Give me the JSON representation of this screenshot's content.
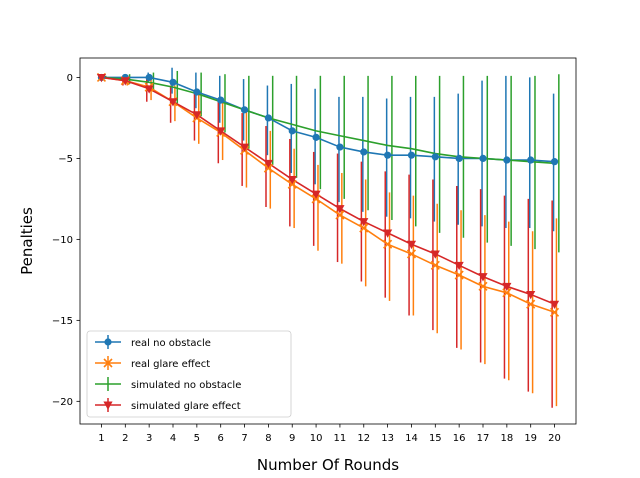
{
  "chart_data": {
    "type": "line",
    "title": "",
    "xlabel": "Number Of Rounds",
    "ylabel": "Penalties",
    "x": [
      1,
      2,
      3,
      4,
      5,
      6,
      7,
      8,
      9,
      10,
      11,
      12,
      13,
      14,
      15,
      16,
      17,
      18,
      19,
      20
    ],
    "xticks": [
      "1",
      "2",
      "3",
      "4",
      "5",
      "6",
      "7",
      "8",
      "9",
      "10",
      "11",
      "12",
      "13",
      "14",
      "15",
      "16",
      "17",
      "18",
      "19",
      "20"
    ],
    "yticks": [
      0,
      -5,
      -10,
      -15,
      -20
    ],
    "ytick_labels": [
      "0",
      "−5",
      "−10",
      "−15",
      "−20"
    ],
    "xlim": [
      0.1,
      20.9
    ],
    "ylim": [
      -21.4,
      1.2
    ],
    "grid": false,
    "legend_position": "lower-left",
    "series": [
      {
        "name": "real no obstacle",
        "color": "#1f77b4",
        "marker": "circle",
        "values": [
          0,
          0,
          0,
          -0.3,
          -0.9,
          -1.4,
          -2.0,
          -2.5,
          -3.3,
          -3.7,
          -4.3,
          -4.6,
          -4.8,
          -4.8,
          -4.9,
          -5.0,
          -5.0,
          -5.1,
          -5.1,
          -5.2
        ],
        "yerr_lower": [
          0.1,
          0.2,
          0.3,
          0.7,
          1.0,
          1.4,
          1.9,
          2.3,
          2.6,
          2.9,
          3.4,
          3.7,
          3.8,
          3.9,
          4.0,
          4.1,
          4.2,
          4.2,
          4.2,
          4.3
        ],
        "yerr_upper": [
          0.1,
          0.2,
          0.3,
          0.9,
          1.2,
          1.5,
          1.9,
          2.0,
          2.9,
          3.0,
          3.1,
          3.4,
          3.5,
          3.6,
          3.7,
          4.0,
          4.8,
          5.2,
          5.1,
          4.2
        ],
        "err_offset": -0.04
      },
      {
        "name": "real glare effect",
        "color": "#ff7f0e",
        "marker": "x",
        "values": [
          0,
          -0.2,
          -0.6,
          -1.5,
          -2.5,
          -3.4,
          -4.5,
          -5.6,
          -6.6,
          -7.5,
          -8.5,
          -9.3,
          -10.3,
          -10.9,
          -11.6,
          -12.2,
          -12.9,
          -13.3,
          -14.0,
          -14.5
        ],
        "yerr_lower": [
          0.1,
          0.3,
          0.8,
          1.2,
          1.6,
          1.7,
          2.3,
          2.5,
          2.7,
          3.2,
          3.0,
          3.6,
          3.5,
          3.8,
          4.2,
          4.6,
          4.8,
          5.4,
          5.5,
          5.8
        ],
        "yerr_upper": [
          0.1,
          0.3,
          0.6,
          1.0,
          1.6,
          2.0,
          2.5,
          2.3,
          2.2,
          2.1,
          2.6,
          3.0,
          3.2,
          3.6,
          3.8,
          4.0,
          4.4,
          4.4,
          4.5,
          5.8
        ],
        "err_offset": 0.08
      },
      {
        "name": "simulated no obstacle",
        "color": "#2ca02c",
        "marker": "none",
        "values": [
          0,
          -0.1,
          -0.3,
          -0.6,
          -1.0,
          -1.5,
          -2.0,
          -2.5,
          -2.9,
          -3.3,
          -3.6,
          -3.9,
          -4.2,
          -4.4,
          -4.7,
          -4.9,
          -5.0,
          -5.1,
          -5.2,
          -5.3
        ],
        "yerr_lower": [
          0.1,
          0.3,
          0.6,
          1.0,
          1.4,
          1.9,
          2.4,
          2.9,
          3.3,
          3.6,
          3.9,
          4.3,
          4.6,
          4.8,
          4.9,
          5.0,
          5.2,
          5.3,
          5.4,
          5.5
        ],
        "yerr_upper": [
          0.1,
          0.3,
          0.6,
          1.0,
          1.3,
          1.7,
          2.1,
          2.6,
          3.0,
          3.4,
          3.7,
          4.0,
          4.3,
          4.5,
          4.8,
          5.0,
          5.1,
          5.2,
          5.3,
          5.5
        ],
        "err_offset": 0.18
      },
      {
        "name": "simulated glare effect",
        "color": "#d62728",
        "marker": "triangle_down",
        "values": [
          0,
          -0.2,
          -0.7,
          -1.5,
          -2.3,
          -3.3,
          -4.3,
          -5.3,
          -6.3,
          -7.2,
          -8.1,
          -8.9,
          -9.6,
          -10.3,
          -10.9,
          -11.6,
          -12.3,
          -12.9,
          -13.4,
          -14.0
        ],
        "yerr_lower": [
          0.1,
          0.3,
          0.8,
          1.3,
          1.6,
          2.0,
          2.4,
          2.7,
          2.9,
          3.2,
          3.3,
          3.7,
          4.0,
          4.4,
          4.7,
          5.1,
          5.3,
          5.7,
          6.0,
          6.4
        ],
        "yerr_upper": [
          0.1,
          0.3,
          0.6,
          1.0,
          1.5,
          1.8,
          2.1,
          2.3,
          2.5,
          2.6,
          3.4,
          3.7,
          3.8,
          4.3,
          4.6,
          4.9,
          5.4,
          5.6,
          5.9,
          6.4
        ],
        "err_offset": -0.1
      }
    ]
  }
}
